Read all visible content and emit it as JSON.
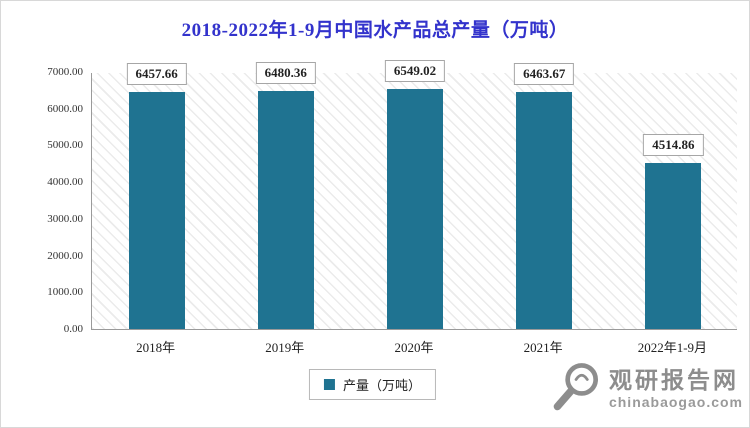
{
  "chart_data": {
    "type": "bar",
    "title": "2018-2022年1-9月中国水产品总产量（万吨）",
    "categories": [
      "2018年",
      "2019年",
      "2020年",
      "2021年",
      "2022年1-9月"
    ],
    "values": [
      6457.66,
      6480.36,
      6549.02,
      6463.67,
      4514.86
    ],
    "value_labels": [
      "6457.66",
      "6480.36",
      "6549.02",
      "6463.67",
      "4514.86"
    ],
    "xlabel": "",
    "ylabel": "",
    "ylim": [
      0,
      7000
    ],
    "y_ticks": [
      "7000.00",
      "6000.00",
      "5000.00",
      "4000.00",
      "3000.00",
      "2000.00",
      "1000.00",
      "0.00"
    ],
    "grid": false,
    "legend_position": "bottom",
    "bar_color": "#1F7391",
    "legend": [
      {
        "label": "产量（万吨）",
        "color": "#1F7391"
      }
    ]
  },
  "colors": {
    "title": "#3333cc",
    "bar": "#1F7391",
    "axis": "#9a9a9a",
    "watermark": "#8d8d8d"
  },
  "watermark": {
    "name": "观研报告网",
    "domain": "chinabaogao.com"
  }
}
